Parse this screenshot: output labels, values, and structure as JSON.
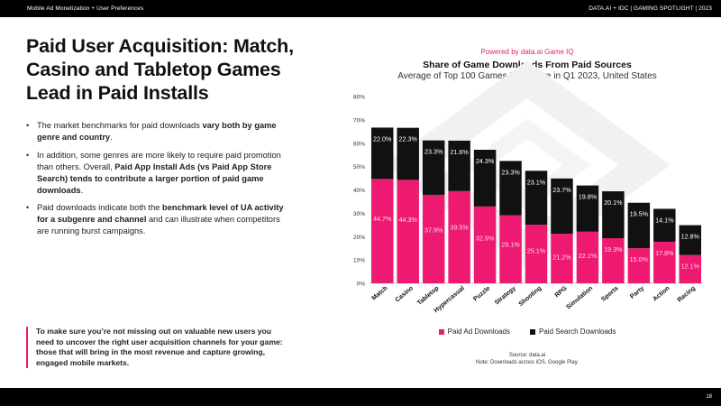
{
  "header": {
    "left": "Mobile Ad Monetization + User Preferences",
    "right": "DATA.AI + IDC  |  GAMING SPOTLIGHT  |  2023"
  },
  "title": "Paid User Acquisition: Match, Casino and Tabletop Games Lead in Paid Installs",
  "bullets": [
    {
      "pre": "The market benchmarks for paid downloads ",
      "bold": "vary both by game genre and country",
      "post": "."
    },
    {
      "pre": "In addition, some genres are more likely to require paid promotion than others. Overall, ",
      "bold": "Paid App Install Ads (vs Paid App Store Search) tends to contribute a larger portion of paid game downloads",
      "post": "."
    },
    {
      "pre": "Paid downloads indicate both the ",
      "bold": "benchmark level of UA activity for a subgenre and channel",
      "post": " and can illustrate when competitors are running burst campaigns."
    }
  ],
  "callout": "To make sure you’re not missing out on valuable new users you need to uncover the right user acquisition channels for your game: those that will bring in the most revenue and capture growing, engaged mobile markets.",
  "chart_header": {
    "powered": "Powered by data.ai Game IQ",
    "title": "Share of Game Downloads From Paid Sources",
    "subtitle": "Average of Top 100 Games Per Genre in Q1 2023, United States"
  },
  "source": {
    "line1": "Source: data.ai",
    "line2": "Note: Downloads across iOS, Google Play."
  },
  "page_number": "18",
  "colors": {
    "accent": "#ee1a72",
    "dark": "#111111"
  },
  "chart_data": {
    "type": "bar",
    "stacked": true,
    "categories": [
      "Match",
      "Casino",
      "Tabletop",
      "Hypercasual",
      "Puzzle",
      "Strategy",
      "Shooting",
      "RPG",
      "Simulation",
      "Sports",
      "Party",
      "Action",
      "Racing"
    ],
    "series": [
      {
        "name": "Paid Ad Downloads",
        "color": "#ee1a72",
        "values": [
          44.7,
          44.3,
          37.9,
          39.5,
          32.9,
          29.1,
          25.1,
          21.2,
          22.1,
          19.3,
          15.0,
          17.8,
          12.1
        ]
      },
      {
        "name": "Paid Search Downloads",
        "color": "#111111",
        "values": [
          22.0,
          22.3,
          23.3,
          21.6,
          24.3,
          23.3,
          23.1,
          23.7,
          19.8,
          20.1,
          19.5,
          14.1,
          12.8
        ]
      }
    ],
    "ylim": [
      0,
      80
    ],
    "yticks": [
      0,
      10,
      20,
      30,
      40,
      50,
      60,
      70,
      80
    ],
    "ytick_labels": [
      "0%",
      "10%",
      "20%",
      "30%",
      "40%",
      "50%",
      "60%",
      "70%",
      "80%"
    ],
    "label_format": "percent_1dp",
    "legend_position": "bottom",
    "grid": false
  }
}
